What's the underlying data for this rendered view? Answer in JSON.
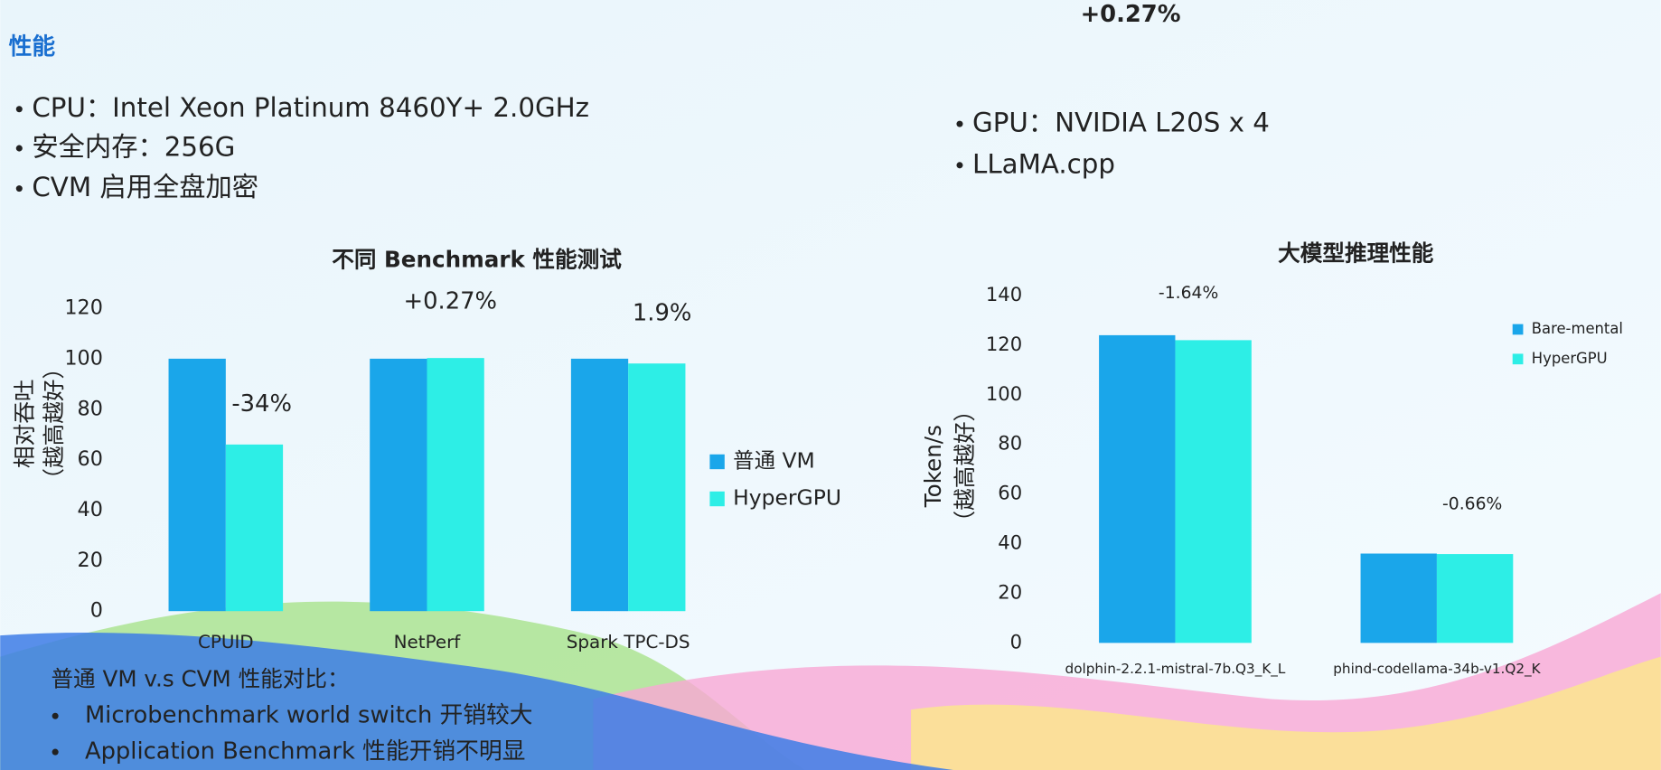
{
  "heading": "性能",
  "left_bullets": [
    "CPU：Intel Xeon Platinum 8460Y+ 2.0GHz",
    "安全内存：256G",
    "CVM 启用全盘加密"
  ],
  "top_note": "+0.27%",
  "right_bullets": [
    "GPU：NVIDIA L20S x 4",
    "LLaMA.cpp"
  ],
  "footer": {
    "title": "普通 VM v.s CVM 性能对比：",
    "bullets": [
      "Microbenchmark world switch 开销较大",
      "Application Benchmark 性能开销不明显"
    ]
  },
  "chart_data": [
    {
      "type": "bar",
      "title": "不同 Benchmark 性能测试",
      "y_label": [
        "相对吞吐",
        "（越高越好）"
      ],
      "categories": [
        "CPUID",
        "NetPerf",
        "Spark TPC-DS"
      ],
      "series": [
        {
          "name": "普通 VM",
          "color": "#1aa6ea",
          "values": [
            100,
            100,
            100
          ]
        },
        {
          "name": "HyperGPU",
          "color": "#2deee6",
          "values": [
            66,
            100.27,
            98.1
          ]
        }
      ],
      "annotations": [
        "-34%",
        "+0.27%",
        "1.9%"
      ],
      "ylim": [
        0,
        120
      ],
      "yticks": [
        0,
        20,
        40,
        60,
        80,
        100,
        120
      ]
    },
    {
      "type": "bar",
      "title": "大模型推理性能",
      "y_label": [
        "Token/s",
        "（越高越好）"
      ],
      "categories": [
        "dolphin-2.2.1-mistral-7b.Q3_K_L",
        "phind-codellama-34b-v1.Q2_K"
      ],
      "series": [
        {
          "name": "Bare-mental",
          "color": "#1aa6ea",
          "values": [
            124,
            36
          ]
        },
        {
          "name": "HyperGPU",
          "color": "#2deee6",
          "values": [
            122,
            35.8
          ]
        }
      ],
      "annotations": [
        "-1.64%",
        "-0.66%"
      ],
      "ylim": [
        0,
        140
      ],
      "yticks": [
        0,
        20,
        40,
        60,
        80,
        100,
        120,
        140
      ]
    }
  ]
}
